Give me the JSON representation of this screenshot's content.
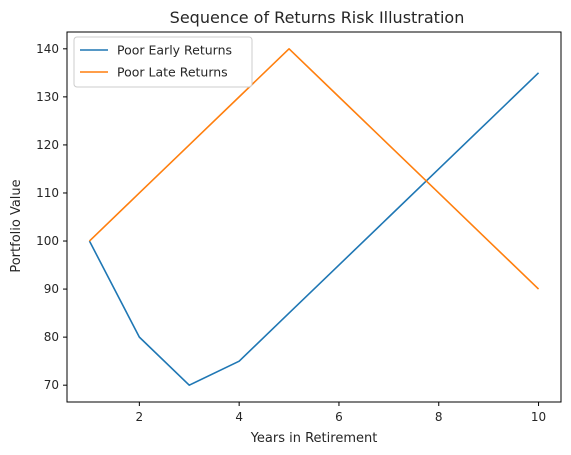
{
  "chart_data": {
    "type": "line",
    "title": "Sequence of Returns Risk Illustration",
    "xlabel": "Years in Retirement",
    "ylabel": "Portfolio Value",
    "xlim": [
      0.55,
      10.45
    ],
    "ylim": [
      66.5,
      143.5
    ],
    "xticks": [
      2,
      4,
      6,
      8,
      10
    ],
    "yticks": [
      70,
      80,
      90,
      100,
      110,
      120,
      130,
      140
    ],
    "grid": false,
    "legend": "upper-left",
    "series": [
      {
        "name": "Poor Early Returns",
        "color": "#1f77b4",
        "x": [
          1,
          2,
          3,
          4,
          5,
          6,
          7,
          8,
          9,
          10
        ],
        "y": [
          100,
          80,
          70,
          75,
          85,
          95,
          105,
          115,
          125,
          135
        ]
      },
      {
        "name": "Poor Late Returns",
        "color": "#ff7f0e",
        "x": [
          1,
          2,
          3,
          4,
          5,
          6,
          7,
          8,
          9,
          10
        ],
        "y": [
          100,
          110,
          120,
          130,
          140,
          130,
          120,
          110,
          100,
          90
        ]
      }
    ]
  }
}
